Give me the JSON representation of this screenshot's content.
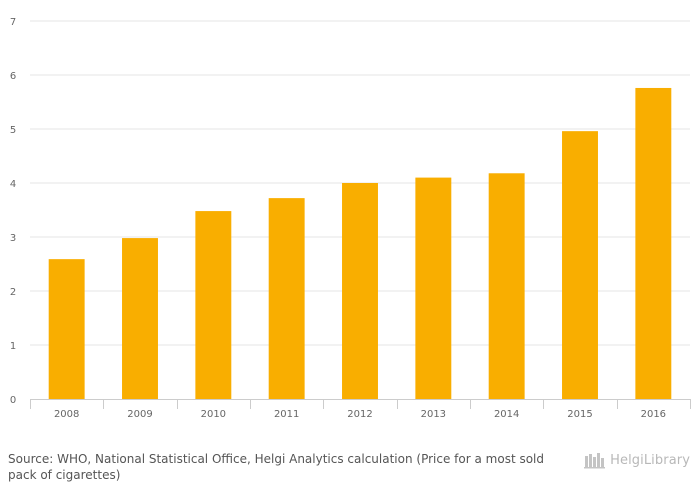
{
  "chart_data": {
    "type": "bar",
    "categories": [
      "2008",
      "2009",
      "2010",
      "2011",
      "2012",
      "2013",
      "2014",
      "2015",
      "2016"
    ],
    "values": [
      2.59,
      2.98,
      3.48,
      3.72,
      4.0,
      4.1,
      4.18,
      4.96,
      5.76
    ],
    "title": "",
    "xlabel": "",
    "ylabel": "",
    "ylim": [
      0,
      7
    ],
    "yticks": [
      "0",
      "1",
      "2",
      "3",
      "4",
      "5",
      "6",
      "7"
    ],
    "grid": true,
    "bar_color": "#F9AE00"
  },
  "footer": {
    "source_text": "Source: WHO, National Statistical Office, Helgi Analytics calculation (Price for a most sold pack of cigarettes)"
  },
  "brand": {
    "name": "HelgiLibrary",
    "icon": "library-books-icon",
    "color": "#b8b8b8"
  }
}
